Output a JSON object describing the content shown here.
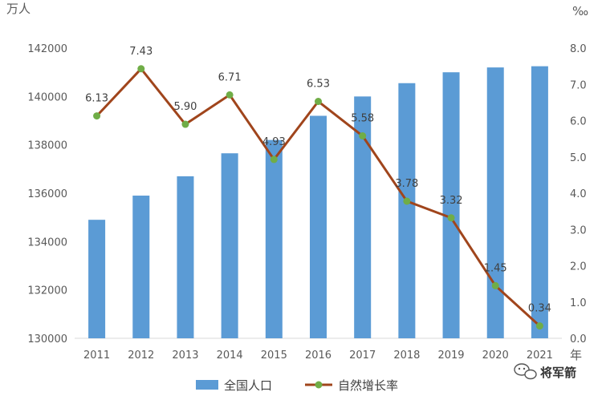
{
  "colors": {
    "bar": "#5B9BD5",
    "line": "#A0451C",
    "marker": "#70AD47",
    "axis_text": "#595959"
  },
  "units": {
    "left": "万人",
    "right": "‰",
    "x": "年"
  },
  "watermark": {
    "text": "将军箭",
    "icon": "wechat-icon"
  },
  "chart_data": {
    "type": "bar",
    "categories": [
      "2011",
      "2012",
      "2013",
      "2014",
      "2015",
      "2016",
      "2017",
      "2018",
      "2019",
      "2020",
      "2021"
    ],
    "series": [
      {
        "name": "全国人口",
        "type": "bar",
        "axis": "left",
        "values": [
          134900,
          135900,
          136700,
          137650,
          138200,
          139200,
          140000,
          140550,
          141000,
          141200,
          141250
        ]
      },
      {
        "name": "自然增长率",
        "type": "line",
        "axis": "right",
        "values": [
          6.13,
          7.43,
          5.9,
          6.71,
          4.93,
          6.53,
          5.58,
          3.78,
          3.32,
          1.45,
          0.34
        ],
        "labels": [
          "6.13",
          "7.43",
          "5.90",
          "6.71",
          "4.93",
          "6.53",
          "5.58",
          "3.78",
          "3.32",
          "1.45",
          "0.34"
        ]
      }
    ],
    "y_left": {
      "ylim": [
        130000,
        142000
      ],
      "ticks": [
        "130000",
        "132000",
        "134000",
        "136000",
        "138000",
        "140000",
        "142000"
      ]
    },
    "y_right": {
      "ylim": [
        0,
        8
      ],
      "ticks": [
        "0.0",
        "1.0",
        "2.0",
        "3.0",
        "4.0",
        "5.0",
        "6.0",
        "7.0",
        "8.0"
      ]
    },
    "grid": false,
    "legend": "bottom"
  }
}
